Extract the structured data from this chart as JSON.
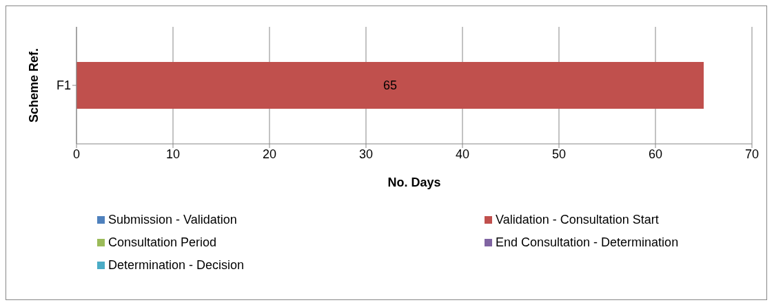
{
  "chart_data": {
    "type": "bar",
    "orientation": "horizontal",
    "stacked": true,
    "xlabel": "No. Days",
    "ylabel": "Scheme Ref.",
    "categories": [
      "F1"
    ],
    "series": [
      {
        "name": "Submission - Validation",
        "color": "#4f81bd",
        "values": [
          null
        ]
      },
      {
        "name": "Validation - Consultation Start",
        "color": "#c0504d",
        "values": [
          65
        ]
      },
      {
        "name": "Consultation Period",
        "color": "#9bbb59",
        "values": [
          null
        ]
      },
      {
        "name": "End Consultation - Determination",
        "color": "#8064a2",
        "values": [
          null
        ]
      },
      {
        "name": "Determination - Decision",
        "color": "#4bacc6",
        "values": [
          null
        ]
      }
    ],
    "xlim": [
      0,
      70
    ],
    "xticks": [
      0,
      10,
      20,
      30,
      40,
      50,
      60,
      70
    ],
    "grid": "x",
    "legend": "bottom",
    "data_labels": true
  }
}
